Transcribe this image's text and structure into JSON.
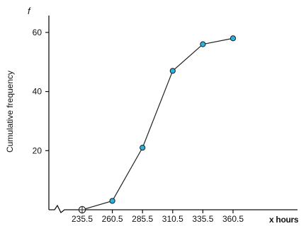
{
  "chart_data": {
    "type": "line",
    "title": "",
    "ylabel": "Cumulative frequency",
    "y_axis_symbol": "f",
    "xlabel": "x hours",
    "x": [
      235.5,
      260.5,
      285.5,
      310.5,
      335.5,
      360.5
    ],
    "y": [
      0,
      3,
      21,
      47,
      56,
      58
    ],
    "x_tick_labels": [
      "235.5",
      "260.5",
      "285.5",
      "310.5",
      "335.5",
      "360.5"
    ],
    "y_ticks": [
      20,
      40,
      60
    ],
    "y_tick_labels": [
      "20",
      "40",
      "60"
    ],
    "ylim": [
      0,
      65
    ],
    "x_axis_break": true,
    "grid": false,
    "marker_color": "#2bb3e0",
    "first_point_marker": "open-cross"
  }
}
